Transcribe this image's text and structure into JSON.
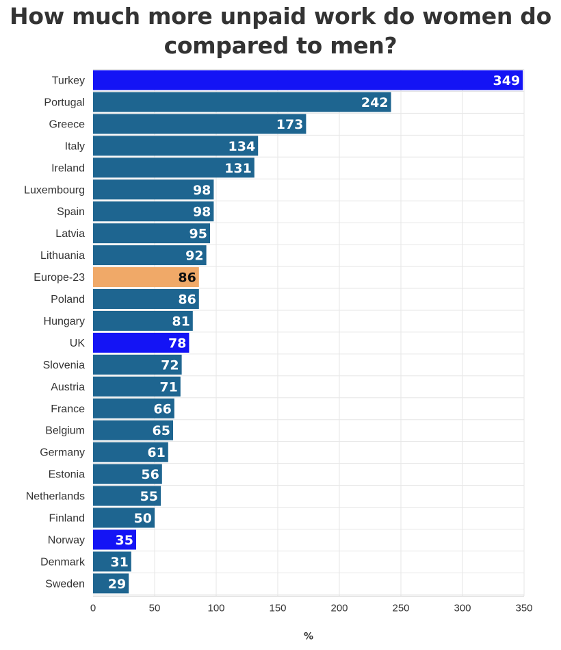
{
  "chart_data": {
    "type": "bar",
    "orientation": "horizontal",
    "title": "How much more unpaid work do women do compared to men?",
    "xlabel": "%",
    "ylabel": "",
    "xlim": [
      0,
      350
    ],
    "ticks": [
      0,
      50,
      100,
      150,
      200,
      250,
      300,
      350
    ],
    "grid": true,
    "categories": [
      "Turkey",
      "Portugal",
      "Greece",
      "Italy",
      "Ireland",
      "Luxembourg",
      "Spain",
      "Latvia",
      "Lithuania",
      "Europe-23",
      "Poland",
      "Hungary",
      "UK",
      "Slovenia",
      "Austria",
      "France",
      "Belgium",
      "Germany",
      "Estonia",
      "Netherlands",
      "Finland",
      "Norway",
      "Denmark",
      "Sweden"
    ],
    "values": [
      349,
      242,
      173,
      134,
      131,
      98,
      98,
      95,
      92,
      86,
      86,
      81,
      78,
      72,
      71,
      66,
      65,
      61,
      56,
      55,
      50,
      35,
      31,
      29
    ],
    "value_labels": [
      "349",
      "242",
      "173",
      "134",
      "131",
      "98",
      "98",
      "95",
      "92",
      "86",
      "86",
      "81",
      "78",
      "72",
      "71",
      "66",
      "65",
      "61",
      "56",
      "55",
      "50",
      "35",
      "31",
      "29"
    ],
    "highlight": {
      "Turkey": "blue",
      "UK": "blue",
      "Norway": "blue",
      "Europe-23": "orange"
    },
    "colors": {
      "default": "#1e6590",
      "blue": "#1414f5",
      "orange": "#f0a968",
      "grid": "#e6e6e6",
      "label_light": "#ffffff",
      "label_dark": "#111111"
    }
  }
}
